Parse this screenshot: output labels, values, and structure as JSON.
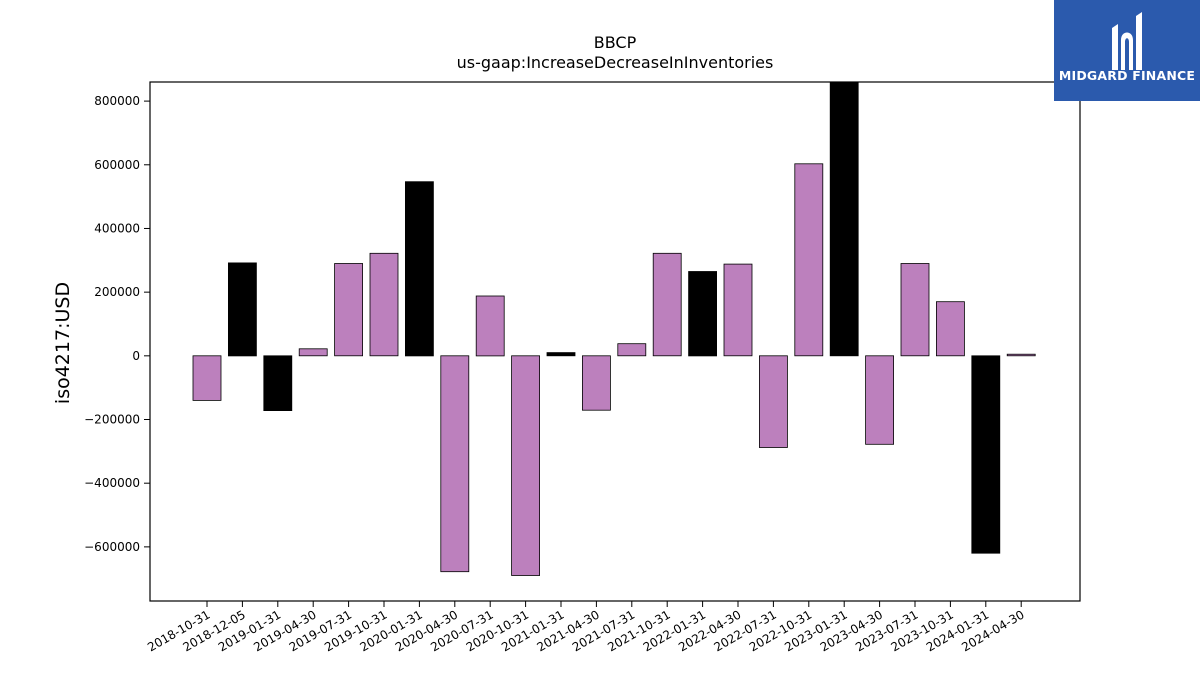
{
  "brand": {
    "name": "MIDGARD FINANCE",
    "bg_color": "#2b5aad"
  },
  "chart_data": {
    "type": "bar",
    "title": "BBCP",
    "subtitle": "us-gaap:IncreaseDecreaseInInventories",
    "xlabel": "",
    "ylabel": "iso4217:USD",
    "ylim": [
      -770000,
      860000
    ],
    "yticks": [
      -600000,
      -400000,
      -200000,
      0,
      200000,
      400000,
      600000,
      800000
    ],
    "ytick_labels": [
      "−600000",
      "−400000",
      "−200000",
      "0",
      "200000",
      "400000",
      "600000",
      "800000"
    ],
    "categories": [
      "2018-10-31",
      "2018-12-05",
      "2019-01-31",
      "2019-04-30",
      "2019-07-31",
      "2019-10-31",
      "2020-01-31",
      "2020-04-30",
      "2020-07-31",
      "2020-10-31",
      "2021-01-31",
      "2021-04-30",
      "2021-07-31",
      "2021-10-31",
      "2022-01-31",
      "2022-04-30",
      "2022-07-31",
      "2022-10-31",
      "2023-01-31",
      "2023-04-30",
      "2023-07-31",
      "2023-10-31",
      "2024-01-31",
      "2024-04-30"
    ],
    "values": [
      -140000,
      292000,
      -172000,
      22000,
      290000,
      322000,
      547000,
      -678000,
      188000,
      -690000,
      10000,
      -171000,
      38000,
      322000,
      265000,
      288000,
      -288000,
      603000,
      860000,
      -278000,
      290000,
      170000,
      -620000,
      5000
    ],
    "colors": [
      "#bc80bd",
      "#000000",
      "#000000",
      "#bc80bd",
      "#bc80bd",
      "#bc80bd",
      "#000000",
      "#bc80bd",
      "#bc80bd",
      "#bc80bd",
      "#000000",
      "#bc80bd",
      "#bc80bd",
      "#bc80bd",
      "#000000",
      "#bc80bd",
      "#bc80bd",
      "#bc80bd",
      "#000000",
      "#bc80bd",
      "#bc80bd",
      "#bc80bd",
      "#000000",
      "#bc80bd"
    ],
    "grid": false,
    "legend": "none"
  }
}
